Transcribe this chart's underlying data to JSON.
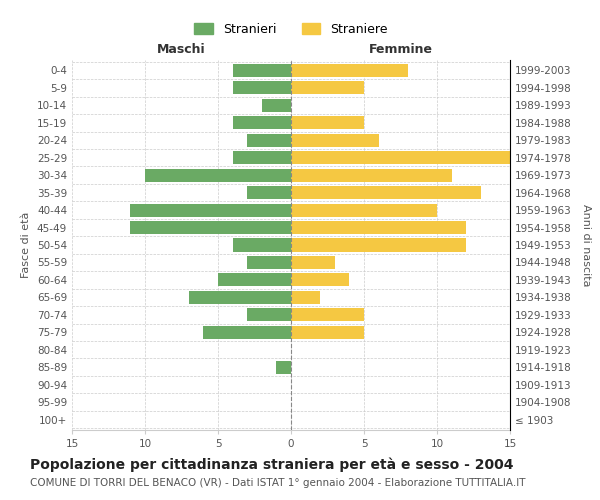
{
  "age_groups": [
    "0-4",
    "5-9",
    "10-14",
    "15-19",
    "20-24",
    "25-29",
    "30-34",
    "35-39",
    "40-44",
    "45-49",
    "50-54",
    "55-59",
    "60-64",
    "65-69",
    "70-74",
    "75-79",
    "80-84",
    "85-89",
    "90-94",
    "95-99",
    "100+"
  ],
  "birth_years": [
    "1999-2003",
    "1994-1998",
    "1989-1993",
    "1984-1988",
    "1979-1983",
    "1974-1978",
    "1969-1973",
    "1964-1968",
    "1959-1963",
    "1954-1958",
    "1949-1953",
    "1944-1948",
    "1939-1943",
    "1934-1938",
    "1929-1933",
    "1924-1928",
    "1919-1923",
    "1914-1918",
    "1909-1913",
    "1904-1908",
    "≤ 1903"
  ],
  "maschi": [
    4,
    4,
    2,
    4,
    3,
    4,
    10,
    3,
    11,
    11,
    4,
    3,
    5,
    7,
    3,
    6,
    0,
    1,
    0,
    0,
    0
  ],
  "femmine": [
    8,
    5,
    0,
    5,
    6,
    15,
    11,
    13,
    10,
    12,
    12,
    3,
    4,
    2,
    5,
    5,
    0,
    0,
    0,
    0,
    0
  ],
  "maschi_color": "#6aaa64",
  "femmine_color": "#f5c842",
  "title": "Popolazione per cittadinanza straniera per età e sesso - 2004",
  "subtitle": "COMUNE DI TORRI DEL BENACO (VR) - Dati ISTAT 1° gennaio 2004 - Elaborazione TUTTITALIA.IT",
  "ylabel_left": "Fasce di età",
  "ylabel_right": "Anni di nascita",
  "xlabel_left": "Maschi",
  "xlabel_right": "Femmine",
  "legend_maschi": "Stranieri",
  "legend_femmine": "Straniere",
  "xlim": 15,
  "background_color": "#ffffff",
  "grid_color": "#cccccc",
  "bar_height": 0.75,
  "fontsize_title": 10,
  "fontsize_subtitle": 7.5,
  "fontsize_labels": 8,
  "fontsize_ticks": 7.5,
  "fontsize_legend": 9
}
